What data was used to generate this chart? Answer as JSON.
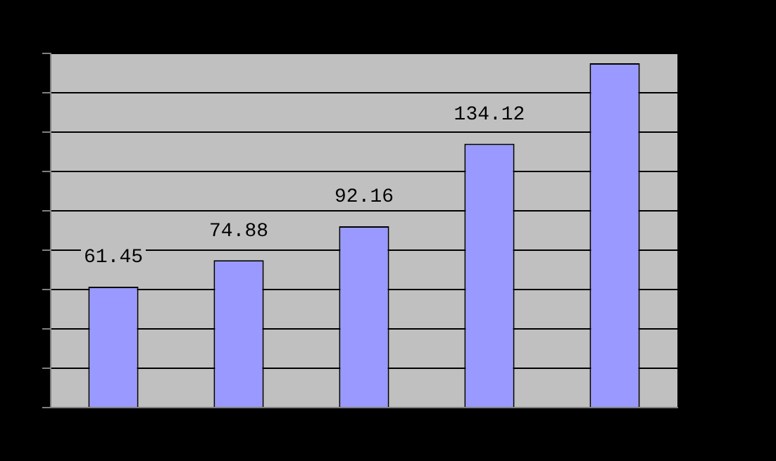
{
  "chart_data": {
    "type": "bar",
    "categories": [
      null,
      null,
      null,
      null,
      null
    ],
    "series": [
      {
        "color": "#9999ff",
        "values": [
          61.45,
          74.88,
          92.16,
          134.12,
          175
        ],
        "value_labels": [
          "61.45",
          "74.88",
          "92.16",
          "134.12",
          null
        ]
      }
    ],
    "ylim": [
      0,
      180
    ],
    "yticks": [
      {
        "value": 0,
        "label": null
      },
      {
        "value": 20,
        "label": null
      },
      {
        "value": 40,
        "label": null
      },
      {
        "value": 60,
        "label": null
      },
      {
        "value": 80,
        "label": null
      },
      {
        "value": 100,
        "label": null
      },
      {
        "value": 120,
        "label": null
      },
      {
        "value": 140,
        "label": null
      },
      {
        "value": 160,
        "label": null
      },
      {
        "value": 180,
        "label": null
      }
    ],
    "grid": "y",
    "legend": false,
    "tick_labels": false
  }
}
